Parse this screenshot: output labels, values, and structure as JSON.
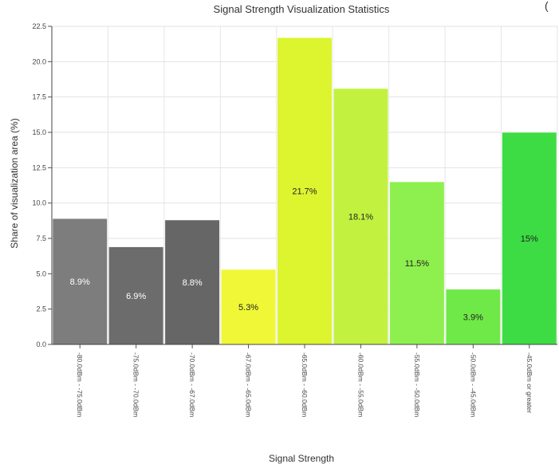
{
  "chart_data": {
    "type": "bar",
    "title": "Signal Strength Visualization Statistics",
    "xlabel": "Signal Strength",
    "ylabel": "Share of visualization area (%)",
    "ylim": [
      0,
      22.5
    ],
    "yticks": [
      "0.0",
      "2.5",
      "5.0",
      "7.5",
      "10.0",
      "12.5",
      "15.0",
      "17.5",
      "20.0",
      "22.5"
    ],
    "grid": true,
    "categories": [
      "-80.0dBm - -75.0dBm",
      "-75.0dBm - -70.0dBm",
      "-70.0dBm - -67.0dBm",
      "-67.0dBm - -65.0dBm",
      "-65.0dBm - -60.0dBm",
      "-60.0dBm - -55.0dBm",
      "-55.0dBm - -50.0dBm",
      "-50.0dBm - -45.0dBm",
      "-45.0dBm or greater"
    ],
    "values": [
      8.9,
      6.9,
      8.8,
      5.3,
      21.7,
      18.1,
      11.5,
      3.9,
      15
    ],
    "data_labels": [
      "8.9%",
      "6.9%",
      "8.8%",
      "5.3%",
      "21.7%",
      "18.1%",
      "11.5%",
      "3.9%",
      "15%"
    ],
    "colors": [
      "#7d7d7d",
      "#6c6c6c",
      "#666666",
      "#f0f736",
      "#dcf52f",
      "#c2f23f",
      "#8ef04e",
      "#6fe948",
      "#3ddc44"
    ],
    "label_colors": [
      "#ffffff",
      "#ffffff",
      "#ffffff",
      "#222222",
      "#222222",
      "#222222",
      "#222222",
      "#222222",
      "#222222"
    ]
  },
  "stray_mark": "("
}
